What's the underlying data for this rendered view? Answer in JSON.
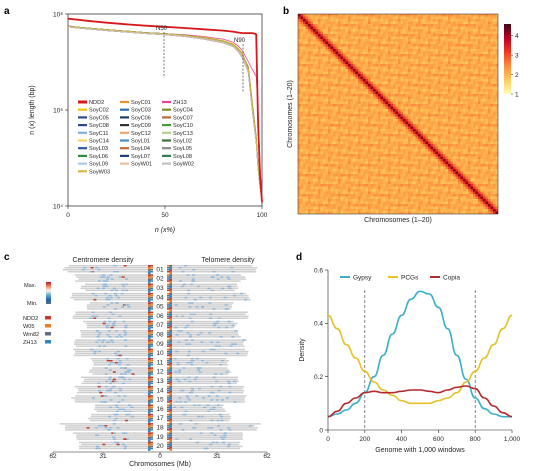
{
  "panels": {
    "a": "a",
    "b": "b",
    "c": "c",
    "d": "d"
  },
  "chart_data": [
    {
      "id": "a",
      "type": "line",
      "xlabel": "n (x%)",
      "ylabel": "n (x) length (bp)",
      "xlim": [
        0,
        100
      ],
      "ylim": [
        10000,
        100000000
      ],
      "yscale": "log",
      "xticks": [
        "0",
        "50",
        "100"
      ],
      "yticks": [
        "10⁴",
        "10⁶",
        "10⁸"
      ],
      "annotations": [
        "N50",
        "N90"
      ],
      "x": [
        0,
        5,
        10,
        20,
        30,
        40,
        50,
        60,
        70,
        80,
        85,
        88,
        90,
        93,
        95,
        97,
        98,
        99,
        100
      ],
      "series": [
        {
          "name": "NDD2",
          "color": "#d7191c",
          "values": [
            80000000,
            76000000,
            72000000,
            66000000,
            61000000,
            57000000,
            54000000,
            51000000,
            48000000,
            45000000,
            43000000,
            41000000,
            40000000,
            40000000,
            40000000,
            38000000,
            500000,
            40000,
            12000
          ]
        },
        {
          "name": "SoyC01",
          "color": "#e6962e",
          "values": [
            55000000,
            52000000,
            50000000,
            46000000,
            43000000,
            41000000,
            39000000,
            36000000,
            32000000,
            27000000,
            23000000,
            18000000,
            14000000,
            8000000,
            1500000,
            300000,
            80000,
            30000,
            15000
          ]
        },
        {
          "name": "ZH13",
          "color": "#e8449a",
          "values": [
            57000000,
            53000000,
            50000000,
            46000000,
            43000000,
            41000000,
            39000000,
            37000000,
            34000000,
            30000000,
            26000000,
            21000000,
            17000000,
            10000000,
            7000000,
            5000000,
            1000000,
            60000,
            15000
          ]
        },
        {
          "name": "SoyC02",
          "color": "#f1c40f",
          "values": [
            56000000,
            53000000,
            51000000,
            47000000,
            44000000,
            41000000,
            39000000,
            36000000,
            33000000,
            28000000,
            24000000,
            19000000,
            15000000,
            7000000,
            1200000,
            250000,
            70000,
            28000,
            14000
          ]
        },
        {
          "name": "SoyC03",
          "color": "#2c6fb2",
          "values": [
            55000000,
            52000000,
            50000000,
            46000000,
            43000000,
            40000000,
            38000000,
            35000000,
            31000000,
            26000000,
            22000000,
            17000000,
            13000000,
            6000000,
            1000000,
            220000,
            60000,
            25000,
            13000
          ]
        },
        {
          "name": "SoyC04",
          "color": "#7a8f2b",
          "values": [
            56000000,
            53000000,
            51000000,
            47000000,
            44000000,
            41000000,
            39000000,
            36000000,
            32000000,
            27000000,
            23000000,
            18000000,
            14000000,
            7500000,
            1300000,
            260000,
            70000,
            28000,
            14000
          ]
        },
        {
          "name": "SoyC05",
          "color": "#2d4a8a",
          "values": [
            54000000,
            51000000,
            49000000,
            45000000,
            42000000,
            40000000,
            38000000,
            35000000,
            31000000,
            26000000,
            22000000,
            17000000,
            13000000,
            6500000,
            1100000,
            230000,
            65000,
            26000,
            13000
          ]
        },
        {
          "name": "SoyC06",
          "color": "#1b3d6e",
          "values": [
            55000000,
            52000000,
            50000000,
            46000000,
            43000000,
            40000000,
            38000000,
            35000000,
            31000000,
            26000000,
            22000000,
            17000000,
            13000000,
            6500000,
            1100000,
            230000,
            65000,
            26000,
            13000
          ]
        },
        {
          "name": "SoyC07",
          "color": "#b86b3e",
          "values": [
            56000000,
            53000000,
            51000000,
            47000000,
            44000000,
            41000000,
            39000000,
            36000000,
            32000000,
            27000000,
            23000000,
            18000000,
            14000000,
            7000000,
            1200000,
            250000,
            70000,
            27000,
            14000
          ]
        },
        {
          "name": "SoyC08",
          "color": "#2b4b8c",
          "values": [
            54000000,
            51000000,
            49000000,
            45000000,
            42000000,
            39000000,
            37000000,
            34000000,
            30000000,
            25000000,
            21000000,
            16000000,
            12000000,
            6000000,
            1000000,
            220000,
            60000,
            25000,
            13000
          ]
        },
        {
          "name": "SoyC09",
          "color": "#333333",
          "values": [
            55000000,
            52000000,
            50000000,
            46000000,
            43000000,
            40000000,
            38000000,
            35000000,
            31000000,
            26000000,
            22000000,
            17000000,
            13000000,
            6500000,
            1100000,
            230000,
            65000,
            26000,
            13000
          ]
        },
        {
          "name": "SoyC10",
          "color": "#4a9a3f",
          "values": [
            56000000,
            53000000,
            51000000,
            47000000,
            44000000,
            41000000,
            39000000,
            36000000,
            32000000,
            27000000,
            23000000,
            18000000,
            14000000,
            7000000,
            1200000,
            250000,
            70000,
            27000,
            14000
          ]
        },
        {
          "name": "SoyC11",
          "color": "#7fb0dc",
          "values": [
            55000000,
            52000000,
            50000000,
            46000000,
            43000000,
            40000000,
            38000000,
            35000000,
            31000000,
            26000000,
            22000000,
            17000000,
            13000000,
            6500000,
            1100000,
            230000,
            65000,
            26000,
            13000
          ]
        },
        {
          "name": "SoyC12",
          "color": "#f2a66a",
          "values": [
            56000000,
            53000000,
            51000000,
            47000000,
            44000000,
            41000000,
            39000000,
            36000000,
            32000000,
            27000000,
            23000000,
            18000000,
            14000000,
            7000000,
            1200000,
            250000,
            70000,
            27000,
            14000
          ]
        },
        {
          "name": "SoyC13",
          "color": "#b2d08a",
          "values": [
            55000000,
            52000000,
            50000000,
            46000000,
            43000000,
            40000000,
            38000000,
            35000000,
            31000000,
            26000000,
            22000000,
            17000000,
            13000000,
            6500000,
            1100000,
            230000,
            65000,
            26000,
            13000
          ]
        },
        {
          "name": "SoyC14",
          "color": "#f3d36b",
          "values": [
            56000000,
            53000000,
            51000000,
            47000000,
            44000000,
            41000000,
            39000000,
            36000000,
            32000000,
            27000000,
            23000000,
            18000000,
            14000000,
            7000000,
            1200000,
            250000,
            70000,
            27000,
            14000
          ]
        },
        {
          "name": "SoyL01",
          "color": "#4d8ec7",
          "values": [
            54000000,
            51000000,
            49000000,
            45000000,
            42000000,
            39000000,
            37000000,
            34000000,
            30000000,
            25000000,
            21000000,
            16000000,
            12000000,
            6000000,
            1000000,
            220000,
            60000,
            25000,
            13000
          ]
        },
        {
          "name": "SoyL02",
          "color": "#3d6f3a",
          "values": [
            55000000,
            52000000,
            50000000,
            46000000,
            43000000,
            40000000,
            38000000,
            35000000,
            31000000,
            26000000,
            22000000,
            17000000,
            13000000,
            6500000,
            1100000,
            230000,
            65000,
            26000,
            13000
          ]
        },
        {
          "name": "SoyL03",
          "color": "#2a5aa0",
          "values": [
            56000000,
            53000000,
            51000000,
            47000000,
            44000000,
            41000000,
            39000000,
            36000000,
            32000000,
            27000000,
            23000000,
            18000000,
            14000000,
            7000000,
            1200000,
            250000,
            70000,
            27000,
            14000
          ]
        },
        {
          "name": "SoyL04",
          "color": "#c46a3a",
          "values": [
            55000000,
            52000000,
            50000000,
            46000000,
            43000000,
            40000000,
            38000000,
            35000000,
            31000000,
            26000000,
            22000000,
            17000000,
            13000000,
            6500000,
            1100000,
            230000,
            65000,
            26000,
            13000
          ]
        },
        {
          "name": "SoyL05",
          "color": "#8a8a8a",
          "values": [
            54000000,
            51000000,
            49000000,
            45000000,
            42000000,
            39000000,
            37000000,
            34000000,
            30000000,
            25000000,
            21000000,
            16000000,
            12000000,
            6000000,
            1000000,
            220000,
            60000,
            25000,
            13000
          ]
        },
        {
          "name": "SoyL06",
          "color": "#2f8a3e",
          "values": [
            56000000,
            53000000,
            51000000,
            47000000,
            44000000,
            41000000,
            39000000,
            36000000,
            32000000,
            27000000,
            23000000,
            18000000,
            14000000,
            7000000,
            1200000,
            250000,
            70000,
            27000,
            14000
          ]
        },
        {
          "name": "SoyL07",
          "color": "#1e3f78",
          "values": [
            55000000,
            52000000,
            50000000,
            46000000,
            43000000,
            40000000,
            38000000,
            35000000,
            31000000,
            26000000,
            22000000,
            17000000,
            13000000,
            6500000,
            1100000,
            230000,
            65000,
            26000,
            13000
          ]
        },
        {
          "name": "SoyL08",
          "color": "#2e7d4f",
          "values": [
            56000000,
            53000000,
            51000000,
            47000000,
            44000000,
            41000000,
            39000000,
            36000000,
            32000000,
            27000000,
            23000000,
            18000000,
            14000000,
            7000000,
            1200000,
            250000,
            70000,
            27000,
            14000
          ]
        },
        {
          "name": "SoyL09",
          "color": "#a8c9e8",
          "values": [
            55000000,
            52000000,
            50000000,
            46000000,
            43000000,
            40000000,
            38000000,
            35000000,
            31000000,
            26000000,
            22000000,
            17000000,
            13000000,
            6500000,
            1100000,
            230000,
            65000,
            26000,
            13000
          ]
        },
        {
          "name": "SoyW01",
          "color": "#e8c0a0",
          "values": [
            54000000,
            51000000,
            49000000,
            45000000,
            42000000,
            39000000,
            37000000,
            34000000,
            30000000,
            25000000,
            21000000,
            16000000,
            12000000,
            6000000,
            1000000,
            220000,
            60000,
            25000,
            13000
          ]
        },
        {
          "name": "SoyW02",
          "color": "#bfbfbf",
          "values": [
            55000000,
            52000000,
            50000000,
            46000000,
            43000000,
            40000000,
            38000000,
            35000000,
            31000000,
            26000000,
            22000000,
            17000000,
            13000000,
            6500000,
            1100000,
            230000,
            65000,
            26000,
            13000
          ]
        },
        {
          "name": "SoyW03",
          "color": "#d4b84a",
          "values": [
            56000000,
            53000000,
            51000000,
            47000000,
            44000000,
            41000000,
            39000000,
            36000000,
            32000000,
            27000000,
            23000000,
            18000000,
            14000000,
            7000000,
            1200000,
            250000,
            70000,
            27000,
            14000
          ]
        }
      ],
      "legend": [
        "NDD2",
        "SoyC01",
        "ZH13",
        "SoyC02",
        "SoyC03",
        "SoyC04",
        "SoyC05",
        "SoyC06",
        "SoyC07",
        "SoyC08",
        "SoyC09",
        "SoyC10",
        "SoyC11",
        "SoyC12",
        "SoyC13",
        "SoyC14",
        "SoyL01",
        "SoyL02",
        "SoyL03",
        "SoyL04",
        "SoyL05",
        "SoyL06",
        "SoyL07",
        "SoyL08",
        "SoyL09",
        "SoyW01",
        "SoyW02",
        "SoyW03"
      ]
    },
    {
      "id": "b",
      "type": "heatmap",
      "xlabel": "Chromosomes (1–20)",
      "ylabel": "Chromosomes (1–20)",
      "n": 20,
      "colorbar": {
        "ticks": [
          "4",
          "3",
          "2",
          "1"
        ],
        "min": 1,
        "max": 4.6,
        "colors": [
          "#ffffb2",
          "#fecc5c",
          "#fd8d3c",
          "#f03b20",
          "#bd0026",
          "#3a0a10"
        ]
      }
    },
    {
      "id": "c",
      "type": "heatmap",
      "title_left": "Centromere density",
      "title_right": "Telomere density",
      "xlabel": "Chromosomes (Mb)",
      "xticks": [
        "62",
        "31",
        "0",
        "31",
        "62"
      ],
      "scale_labels": [
        "Max.",
        "Min."
      ],
      "legend": [
        "NDD2",
        "W05",
        "Wm82",
        "ZH13"
      ],
      "legend_colors": [
        "#c0392b",
        "#e67e22",
        "#5d6d7e",
        "#2e86c1"
      ],
      "chromosomes": [
        "01",
        "02",
        "03",
        "04",
        "05",
        "06",
        "07",
        "08",
        "09",
        "10",
        "11",
        "12",
        "13",
        "14",
        "15",
        "16",
        "17",
        "18",
        "19",
        "20"
      ],
      "chrom_lengths_mb": [
        56,
        49,
        45,
        52,
        42,
        51,
        44,
        47,
        50,
        51,
        39,
        40,
        45,
        49,
        51,
        37,
        41,
        58,
        50,
        47
      ]
    },
    {
      "id": "d",
      "type": "line",
      "xlabel": "Genome with 1,000 windows",
      "ylabel": "Density",
      "xlim": [
        0,
        1000
      ],
      "ylim": [
        0,
        0.6
      ],
      "xticks": [
        0,
        200,
        400,
        600,
        800,
        1000
      ],
      "yticks": [
        0,
        0.2,
        0.4,
        0.6
      ],
      "vlines": [
        200,
        800
      ],
      "x": [
        0,
        50,
        100,
        150,
        200,
        250,
        300,
        350,
        400,
        450,
        500,
        550,
        600,
        650,
        700,
        750,
        800,
        850,
        900,
        950,
        1000
      ],
      "series": [
        {
          "name": "Gypsy",
          "color": "#3ab0c8",
          "values": [
            0.05,
            0.06,
            0.075,
            0.1,
            0.14,
            0.2,
            0.28,
            0.36,
            0.43,
            0.49,
            0.52,
            0.51,
            0.46,
            0.38,
            0.28,
            0.19,
            0.12,
            0.08,
            0.06,
            0.05,
            0.05
          ]
        },
        {
          "name": "PCGs",
          "color": "#e6c229",
          "values": [
            0.43,
            0.38,
            0.32,
            0.27,
            0.22,
            0.18,
            0.15,
            0.13,
            0.11,
            0.1,
            0.1,
            0.1,
            0.11,
            0.12,
            0.14,
            0.18,
            0.22,
            0.27,
            0.32,
            0.38,
            0.43
          ]
        },
        {
          "name": "Copia",
          "color": "#b5282e",
          "values": [
            0.05,
            0.07,
            0.1,
            0.12,
            0.14,
            0.145,
            0.14,
            0.14,
            0.145,
            0.15,
            0.15,
            0.145,
            0.14,
            0.15,
            0.16,
            0.165,
            0.155,
            0.12,
            0.09,
            0.065,
            0.05
          ]
        }
      ]
    }
  ]
}
